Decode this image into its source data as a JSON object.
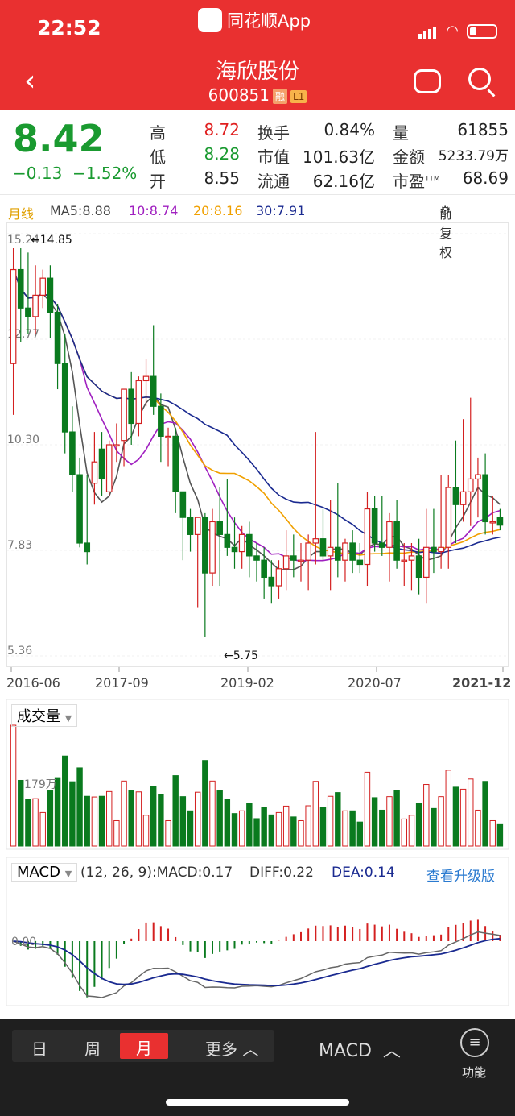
{
  "status": {
    "time": "22:52",
    "app": "同花顺App"
  },
  "header": {
    "title": "海欣股份",
    "code": "600851",
    "tag1": "融",
    "tag2": "L1"
  },
  "quote": {
    "price": "8.42",
    "change": "−0.13",
    "change_pct": "−1.52%",
    "high_label": "高",
    "high": "8.72",
    "low_label": "低",
    "low": "8.28",
    "open_label": "开",
    "open": "8.55",
    "turnover_label": "换手",
    "turnover": "0.84%",
    "mcap_label": "市值",
    "mcap": "101.63亿",
    "float_label": "流通",
    "float": "62.16亿",
    "vol_label": "量",
    "vol": "61855",
    "amount_label": "金额",
    "amount": "5233.79万",
    "pe_label": "市盈",
    "pe_sup": "TTM",
    "pe": "68.69"
  },
  "legend": {
    "period": "月线",
    "ma5": "MA5:8.88",
    "ma10": "10:8.74",
    "ma20": "20:8.16",
    "ma30": "30:7.91",
    "adj": "前复权"
  },
  "price_axis": [
    "15.24",
    "12.77",
    "10.30",
    "7.83",
    "5.36"
  ],
  "annotations": {
    "max": "←14.85",
    "min": "←5.75"
  },
  "dates": [
    "2016-06",
    "2017-09",
    "2019-02",
    "2020-07",
    "2021-12"
  ],
  "volume": {
    "label": "成交量",
    "axis": "179万"
  },
  "macd": {
    "label": "MACD",
    "params": "(12, 26, 9):MACD:0.17",
    "diff": "DIFF:0.22",
    "dea": "DEA:0.14",
    "upgrade": "查看升级版",
    "zero": "0.00"
  },
  "chart_data": {
    "type": "candlestick",
    "x": [
      "2016-06",
      "2016-07",
      "2016-08",
      "2016-09",
      "2016-10",
      "2016-11",
      "2016-12",
      "2017-01",
      "2017-02",
      "2017-03",
      "2017-04",
      "2017-05",
      "2017-06",
      "2017-07",
      "2017-08",
      "2017-09",
      "2017-10",
      "2017-11",
      "2017-12",
      "2018-01",
      "2018-02",
      "2018-03",
      "2018-04",
      "2018-05",
      "2018-06",
      "2018-07",
      "2018-08",
      "2018-09",
      "2018-10",
      "2018-11",
      "2018-12",
      "2019-01",
      "2019-02",
      "2019-03",
      "2019-04",
      "2019-05",
      "2019-06",
      "2019-07",
      "2019-08",
      "2019-09",
      "2019-10",
      "2019-11",
      "2019-12",
      "2020-01",
      "2020-02",
      "2020-03",
      "2020-04",
      "2020-05",
      "2020-06",
      "2020-07",
      "2020-08",
      "2020-09",
      "2020-10",
      "2020-11",
      "2020-12",
      "2021-01",
      "2021-02",
      "2021-03",
      "2021-04",
      "2021-05",
      "2021-06",
      "2021-07",
      "2021-08",
      "2021-09",
      "2021-10",
      "2021-11",
      "2021-12"
    ],
    "open": [
      12.2,
      14.4,
      13.5,
      13.3,
      13.8,
      14.2,
      13.4,
      12.2,
      10.6,
      9.6,
      8.0,
      9.4,
      10.2,
      9.2,
      10.3,
      10.4,
      11.6,
      10.8,
      11.8,
      11.9,
      11.2,
      10.5,
      10.5,
      9.2,
      8.6,
      8.2,
      8.6,
      7.3,
      8.5,
      8.2,
      7.9,
      7.8,
      8.2,
      7.7,
      7.6,
      7.2,
      7.0,
      7.4,
      7.7,
      7.6,
      7.6,
      8.0,
      8.1,
      7.7,
      7.9,
      7.6,
      8.0,
      7.6,
      7.5,
      8.8,
      8.0,
      7.9,
      8.5,
      7.6,
      7.6,
      7.7,
      7.2,
      7.9,
      7.8,
      7.9,
      9.3,
      8.9,
      9.2,
      9.5,
      9.6,
      8.5,
      8.6
    ],
    "high": [
      14.9,
      14.9,
      14.8,
      14.5,
      14.4,
      14.5,
      13.6,
      12.9,
      11.2,
      10.0,
      9.6,
      10.6,
      10.6,
      10.4,
      10.8,
      11.6,
      12.0,
      11.9,
      12.3,
      13.1,
      11.5,
      10.7,
      10.7,
      9.2,
      8.8,
      8.6,
      8.7,
      8.8,
      9.3,
      9.5,
      8.6,
      8.4,
      8.5,
      8.0,
      7.9,
      7.6,
      7.6,
      8.3,
      8.2,
      8.0,
      8.2,
      10.6,
      8.8,
      9.0,
      9.4,
      8.1,
      8.3,
      8.0,
      9.2,
      9.1,
      9.1,
      8.7,
      9.0,
      8.0,
      8.0,
      8.1,
      8.8,
      8.8,
      9.6,
      9.6,
      10.4,
      10.9,
      11.4,
      10.0,
      10.1,
      9.1,
      8.8
    ],
    "low": [
      11.0,
      12.7,
      12.9,
      12.9,
      13.5,
      12.8,
      11.6,
      10.1,
      9.2,
      7.9,
      7.5,
      8.9,
      9.1,
      9.1,
      9.9,
      9.8,
      10.3,
      10.5,
      11.2,
      11.0,
      9.9,
      9.8,
      8.7,
      7.6,
      7.8,
      6.5,
      5.8,
      7.0,
      7.0,
      7.7,
      7.4,
      7.4,
      7.2,
      7.1,
      6.7,
      6.6,
      6.7,
      6.9,
      7.2,
      7.1,
      6.9,
      7.5,
      7.6,
      6.9,
      7.2,
      7.1,
      7.3,
      7.3,
      7.0,
      7.8,
      7.7,
      7.1,
      7.4,
      7.0,
      6.9,
      6.8,
      6.6,
      7.3,
      7.4,
      7.4,
      8.0,
      8.5,
      8.4,
      8.6,
      8.2,
      8.2,
      8.3
    ],
    "close": [
      14.4,
      13.5,
      13.3,
      13.8,
      14.2,
      13.4,
      12.2,
      10.6,
      9.6,
      8.0,
      7.8,
      9.9,
      9.5,
      10.3,
      10.3,
      11.6,
      10.8,
      11.8,
      11.9,
      11.2,
      10.5,
      10.5,
      9.2,
      8.6,
      8.2,
      8.6,
      7.3,
      8.5,
      8.2,
      7.9,
      7.8,
      8.2,
      7.7,
      7.6,
      7.2,
      7.0,
      7.4,
      7.7,
      7.6,
      7.6,
      8.0,
      8.1,
      7.7,
      7.9,
      7.6,
      8.0,
      7.6,
      7.5,
      8.8,
      8.0,
      7.9,
      8.5,
      7.6,
      7.6,
      7.7,
      7.2,
      7.9,
      7.8,
      7.9,
      9.3,
      8.9,
      9.2,
      9.5,
      9.6,
      8.5,
      8.5,
      8.42
    ]
  }
}
